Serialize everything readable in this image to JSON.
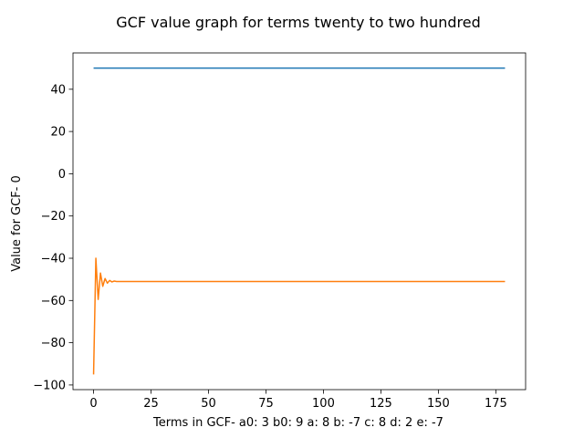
{
  "chart_data": {
    "type": "line",
    "title": "GCF value graph for terms twenty to two hundred",
    "xlabel": "Terms in GCF-  a0: 3 b0: 9 a: 8 b: -7 c: 8 d: 2 e: -7",
    "ylabel": "Value for GCF- 0",
    "xlim": [
      -8.95,
      187.95
    ],
    "ylim": [
      -102.2,
      57.2
    ],
    "xticks": [
      0,
      25,
      50,
      75,
      100,
      125,
      150,
      175
    ],
    "xtick_labels": [
      "0",
      "25",
      "50",
      "75",
      "100",
      "125",
      "150",
      "175"
    ],
    "yticks": [
      -100,
      -80,
      -60,
      -40,
      -20,
      0,
      20,
      40
    ],
    "ytick_labels": [
      "−100",
      "−80",
      "−60",
      "−40",
      "−20",
      "0",
      "20",
      "40"
    ],
    "grid": false,
    "series": [
      {
        "color": "#1f77b4",
        "points": [
          [
            0,
            50
          ],
          [
            179,
            50
          ]
        ]
      },
      {
        "color": "#ff7f0e",
        "points": [
          [
            0,
            -95
          ],
          [
            1,
            -40
          ],
          [
            2,
            -59.5
          ],
          [
            3,
            -47
          ],
          [
            4,
            -53.3
          ],
          [
            5,
            -49.6
          ],
          [
            6,
            -51.8
          ],
          [
            7,
            -50.5
          ],
          [
            8,
            -51.2
          ],
          [
            9,
            -50.8
          ],
          [
            10,
            -51
          ],
          [
            179,
            -51
          ]
        ]
      }
    ]
  }
}
